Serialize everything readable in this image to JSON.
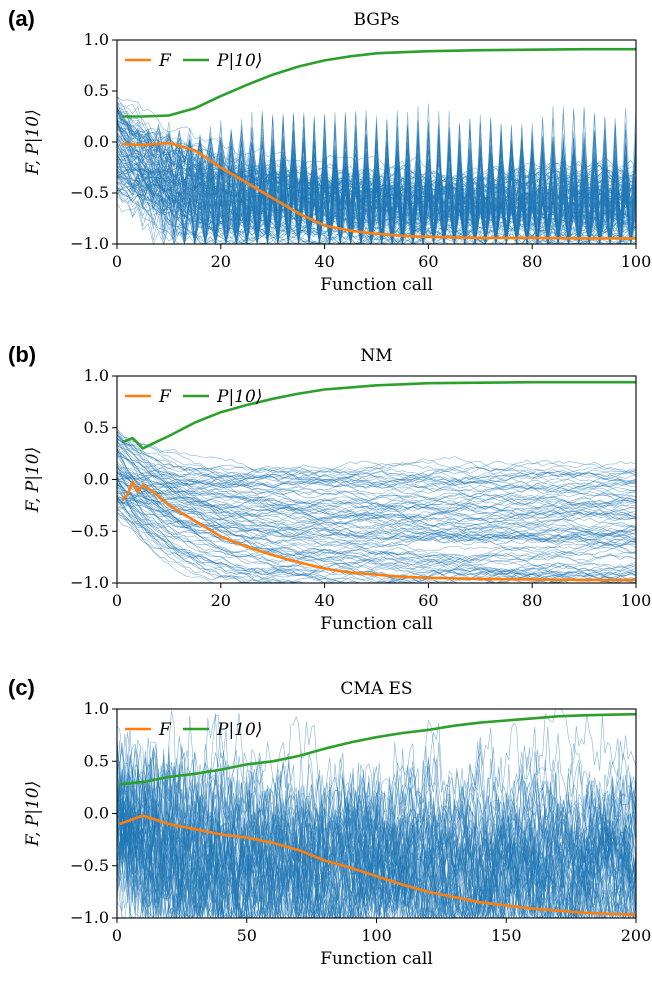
{
  "colors": {
    "trace": "#1f77b4",
    "F": "#ff7f0e",
    "P": "#2ca02c"
  },
  "chart_data": [
    {
      "type": "line",
      "panel_letter": "(a)",
      "title": "BGPs",
      "xlabel": "Function call",
      "ylabel": "F, P|10⟩",
      "xlim": [
        0,
        100
      ],
      "ylim": [
        -1.0,
        1.0
      ],
      "xticks": [
        0,
        20,
        40,
        60,
        80,
        100
      ],
      "xtick_labels": [
        "0",
        "20",
        "40",
        "60",
        "80",
        "100"
      ],
      "yticks": [
        1.0,
        0.5,
        0.0,
        -0.5,
        -1.0
      ],
      "ytick_labels": [
        "1.0",
        "0.5",
        "0.0",
        "−0.5",
        "−1.0"
      ],
      "legend": [
        {
          "label": "F",
          "color": "#ff7f0e"
        },
        {
          "label": "P|10⟩",
          "color": "#2ca02c"
        }
      ],
      "series": [
        {
          "name": "F",
          "color": "#ff7f0e",
          "x": [
            1,
            5,
            10,
            15,
            20,
            25,
            30,
            35,
            40,
            45,
            50,
            55,
            60,
            65,
            70,
            80,
            90,
            100
          ],
          "y": [
            -0.02,
            -0.03,
            -0.01,
            -0.08,
            -0.25,
            -0.4,
            -0.55,
            -0.7,
            -0.82,
            -0.87,
            -0.9,
            -0.92,
            -0.93,
            -0.935,
            -0.94,
            -0.94,
            -0.945,
            -0.945
          ]
        },
        {
          "name": "P|10⟩",
          "color": "#2ca02c",
          "x": [
            1,
            5,
            10,
            15,
            20,
            25,
            30,
            35,
            40,
            45,
            50,
            55,
            60,
            70,
            80,
            90,
            100
          ],
          "y": [
            0.25,
            0.25,
            0.26,
            0.33,
            0.45,
            0.56,
            0.66,
            0.74,
            0.8,
            0.84,
            0.87,
            0.88,
            0.89,
            0.9,
            0.905,
            0.91,
            0.91
          ]
        }
      ],
      "ensemble": {
        "x_end": 100,
        "runs": 120,
        "start_center": 0.0,
        "start_spread": 0.5,
        "attractors": [
          -0.5,
          -0.55,
          -0.95,
          -0.9
        ],
        "attractor_spread": 0.18,
        "noise": 0.07,
        "oscillating": true
      }
    },
    {
      "type": "line",
      "panel_letter": "(b)",
      "title": "NM",
      "xlabel": "Function call",
      "ylabel": "F, P|10⟩",
      "xlim": [
        0,
        100
      ],
      "ylim": [
        -1.0,
        1.0
      ],
      "xticks": [
        0,
        20,
        40,
        60,
        80,
        100
      ],
      "xtick_labels": [
        "0",
        "20",
        "40",
        "60",
        "80",
        "100"
      ],
      "yticks": [
        1.0,
        0.5,
        0.0,
        -0.5,
        -1.0
      ],
      "ytick_labels": [
        "1.0",
        "0.5",
        "0.0",
        "−0.5",
        "−1.0"
      ],
      "legend": [
        {
          "label": "F",
          "color": "#ff7f0e"
        },
        {
          "label": "P|10⟩",
          "color": "#2ca02c"
        }
      ],
      "series": [
        {
          "name": "F",
          "color": "#ff7f0e",
          "x": [
            1,
            2,
            3,
            4,
            5,
            7,
            10,
            15,
            20,
            25,
            30,
            35,
            40,
            45,
            50,
            55,
            60,
            70,
            80,
            90,
            100
          ],
          "y": [
            -0.2,
            -0.15,
            -0.02,
            -0.12,
            -0.05,
            -0.12,
            -0.25,
            -0.4,
            -0.55,
            -0.65,
            -0.73,
            -0.8,
            -0.86,
            -0.9,
            -0.92,
            -0.94,
            -0.95,
            -0.96,
            -0.965,
            -0.97,
            -0.97
          ]
        },
        {
          "name": "P|10⟩",
          "color": "#2ca02c",
          "x": [
            1,
            3,
            5,
            7,
            10,
            15,
            20,
            25,
            30,
            35,
            40,
            45,
            50,
            55,
            60,
            70,
            80,
            90,
            100
          ],
          "y": [
            0.36,
            0.4,
            0.3,
            0.35,
            0.42,
            0.55,
            0.65,
            0.72,
            0.78,
            0.83,
            0.87,
            0.89,
            0.91,
            0.92,
            0.93,
            0.935,
            0.94,
            0.94,
            0.94
          ]
        }
      ],
      "ensemble": {
        "x_end": 100,
        "runs": 100,
        "start_center": 0.1,
        "start_spread": 0.45,
        "attractors": [
          -0.5,
          -0.3,
          -0.65,
          -0.85,
          -0.95,
          0.0
        ],
        "attractor_spread": 0.12,
        "noise": 0.03,
        "oscillating": false
      }
    },
    {
      "type": "line",
      "panel_letter": "(c)",
      "title": "CMA ES",
      "xlabel": "Function call",
      "ylabel": "F, P|10⟩",
      "xlim": [
        0,
        200
      ],
      "ylim": [
        -1.0,
        1.0
      ],
      "xticks": [
        0,
        50,
        100,
        150,
        200
      ],
      "xtick_labels": [
        "0",
        "50",
        "100",
        "150",
        "200"
      ],
      "yticks": [
        1.0,
        0.5,
        0.0,
        -0.5,
        -1.0
      ],
      "ytick_labels": [
        "1.0",
        "0.5",
        "0.0",
        "−0.5",
        "−1.0"
      ],
      "legend": [
        {
          "label": "F",
          "color": "#ff7f0e"
        },
        {
          "label": "P|10⟩",
          "color": "#2ca02c"
        }
      ],
      "series": [
        {
          "name": "F",
          "color": "#ff7f0e",
          "x": [
            1,
            10,
            20,
            30,
            40,
            50,
            60,
            70,
            80,
            90,
            100,
            110,
            120,
            130,
            140,
            150,
            160,
            170,
            180,
            190,
            200
          ],
          "y": [
            -0.1,
            -0.02,
            -0.1,
            -0.15,
            -0.2,
            -0.23,
            -0.28,
            -0.35,
            -0.45,
            -0.52,
            -0.6,
            -0.68,
            -0.75,
            -0.8,
            -0.85,
            -0.88,
            -0.91,
            -0.93,
            -0.95,
            -0.96,
            -0.97
          ]
        },
        {
          "name": "P|10⟩",
          "color": "#2ca02c",
          "x": [
            1,
            10,
            20,
            30,
            40,
            50,
            60,
            70,
            80,
            90,
            100,
            110,
            120,
            130,
            140,
            150,
            160,
            170,
            180,
            190,
            200
          ],
          "y": [
            0.28,
            0.3,
            0.35,
            0.38,
            0.42,
            0.47,
            0.5,
            0.55,
            0.62,
            0.68,
            0.73,
            0.77,
            0.8,
            0.84,
            0.87,
            0.89,
            0.91,
            0.93,
            0.94,
            0.945,
            0.95
          ]
        }
      ],
      "ensemble": {
        "x_end": 200,
        "runs": 70,
        "start_center": 0.0,
        "start_spread": 0.55,
        "attractors": [
          -0.5,
          -0.6,
          -0.8,
          -0.3
        ],
        "attractor_spread": 0.2,
        "noise": 0.28,
        "oscillating": false
      }
    }
  ]
}
